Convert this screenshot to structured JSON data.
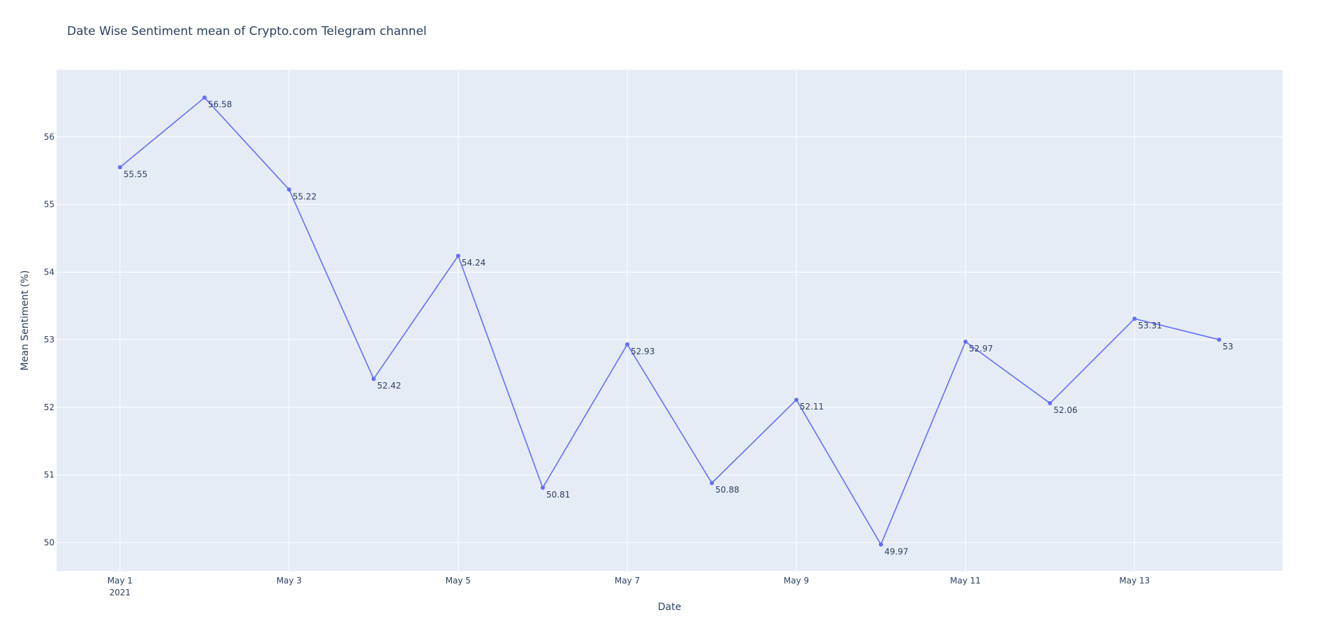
{
  "chart_data": {
    "type": "line",
    "title": "Date Wise Sentiment mean of Crypto.com Telegram channel",
    "xlabel": "Date",
    "ylabel": "Mean Sentiment (%)",
    "x": [
      "2021-05-01",
      "2021-05-02",
      "2021-05-03",
      "2021-05-04",
      "2021-05-05",
      "2021-05-06",
      "2021-05-07",
      "2021-05-08",
      "2021-05-09",
      "2021-05-10",
      "2021-05-11",
      "2021-05-12",
      "2021-05-13",
      "2021-05-14"
    ],
    "series": [
      {
        "values": [
          55.55,
          56.58,
          55.22,
          52.42,
          54.24,
          50.81,
          52.93,
          50.88,
          52.11,
          49.97,
          52.97,
          52.06,
          53.31,
          53
        ],
        "labels": [
          "55.55",
          "56.58",
          "55.22",
          "52.42",
          "54.24",
          "50.81",
          "52.93",
          "50.88",
          "52.11",
          "49.97",
          "52.97",
          "52.06",
          "53.31",
          "53"
        ],
        "color": "#636efa"
      }
    ],
    "x_ticks": [
      {
        "date": "2021-05-01",
        "label": "May 1",
        "sublabel": "2021"
      },
      {
        "date": "2021-05-03",
        "label": "May 3",
        "sublabel": ""
      },
      {
        "date": "2021-05-05",
        "label": "May 5",
        "sublabel": ""
      },
      {
        "date": "2021-05-07",
        "label": "May 7",
        "sublabel": ""
      },
      {
        "date": "2021-05-09",
        "label": "May 9",
        "sublabel": ""
      },
      {
        "date": "2021-05-11",
        "label": "May 11",
        "sublabel": ""
      },
      {
        "date": "2021-05-13",
        "label": "May 13",
        "sublabel": ""
      }
    ],
    "y_ticks": [
      50,
      51,
      52,
      53,
      54,
      55,
      56
    ],
    "xlim": [
      "2021-04-30T06:00",
      "2021-05-14T18:00"
    ],
    "ylim": [
      49.58,
      56.99
    ],
    "grid": true,
    "plot_bgcolor": "#e5ecf6",
    "text_color": "#2a3f5f"
  }
}
